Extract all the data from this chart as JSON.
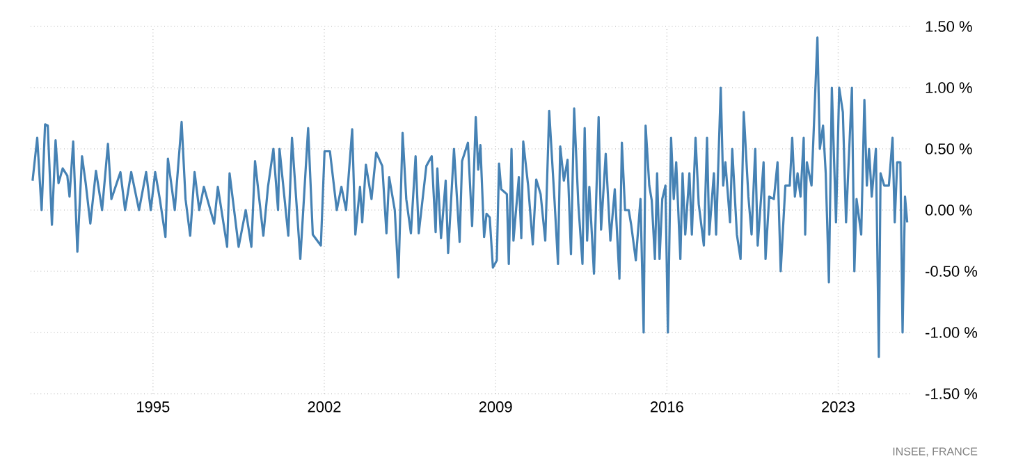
{
  "chart_data": {
    "type": "line",
    "color": "#4682b4",
    "x": [
      1990.08,
      1990.27,
      1990.42,
      1990.45,
      1990.59,
      1990.7,
      1990.87,
      1991.02,
      1991.14,
      1991.31,
      1991.5,
      1991.59,
      1991.74,
      1991.91,
      1992.1,
      1992.25,
      1992.44,
      1992.67,
      1992.92,
      1993.16,
      1993.3,
      1993.67,
      1993.86,
      1994.11,
      1994.43,
      1994.72,
      1994.91,
      1995.09,
      1995.28,
      1995.51,
      1995.61,
      1995.89,
      1996.17,
      1996.33,
      1996.52,
      1996.7,
      1996.89,
      1997.08,
      1997.5,
      1997.65,
      1998.03,
      1998.13,
      1998.5,
      1998.79,
      1999.02,
      1999.17,
      1999.51,
      1999.7,
      1999.92,
      2000.11,
      2000.17,
      2000.53,
      2000.68,
      2001.02,
      2001.34,
      2001.53,
      2001.86,
      2002.01,
      2002.23,
      2002.51,
      2002.7,
      2002.89,
      2003.14,
      2003.27,
      2003.46,
      2003.55,
      2003.7,
      2003.93,
      2004.12,
      2004.37,
      2004.54,
      2004.65,
      2004.88,
      2005.03,
      2005.2,
      2005.35,
      2005.54,
      2005.73,
      2005.86,
      2006.17,
      2006.39,
      2006.55,
      2006.62,
      2006.77,
      2006.96,
      2007.06,
      2007.3,
      2007.53,
      2007.63,
      2007.87,
      2008.04,
      2008.19,
      2008.29,
      2008.38,
      2008.53,
      2008.63,
      2008.76,
      2008.89,
      2009.05,
      2009.14,
      2009.23,
      2009.46,
      2009.54,
      2009.65,
      2009.73,
      2009.95,
      2010.05,
      2010.13,
      2010.33,
      2010.52,
      2010.66,
      2010.84,
      2011.03,
      2011.19,
      2011.41,
      2011.55,
      2011.64,
      2011.79,
      2011.94,
      2012.08,
      2012.21,
      2012.38,
      2012.55,
      2012.64,
      2012.74,
      2012.83,
      2013.02,
      2013.21,
      2013.31,
      2013.5,
      2013.69,
      2013.87,
      2014.06,
      2014.16,
      2014.29,
      2014.44,
      2014.54,
      2014.73,
      2014.92,
      2015.05,
      2015.13,
      2015.28,
      2015.38,
      2015.51,
      2015.6,
      2015.7,
      2015.81,
      2015.94,
      2016.04,
      2016.17,
      2016.28,
      2016.38,
      2016.55,
      2016.64,
      2016.75,
      2016.92,
      2017.02,
      2017.17,
      2017.3,
      2017.51,
      2017.64,
      2017.73,
      2017.92,
      2018.01,
      2018.2,
      2018.3,
      2018.39,
      2018.58,
      2018.67,
      2018.86,
      2019.01,
      2019.14,
      2019.33,
      2019.46,
      2019.61,
      2019.71,
      2019.95,
      2020.03,
      2020.18,
      2020.37,
      2020.52,
      2020.65,
      2020.84,
      2021.02,
      2021.12,
      2021.23,
      2021.34,
      2021.46,
      2021.59,
      2021.65,
      2021.72,
      2021.91,
      2022.15,
      2022.25,
      2022.38,
      2022.49,
      2022.62,
      2022.74,
      2022.91,
      2023.04,
      2023.19,
      2023.32,
      2023.56,
      2023.66,
      2023.75,
      2023.94,
      2024.07,
      2024.17,
      2024.26,
      2024.37,
      2024.54,
      2024.66,
      2024.73,
      2024.88,
      2025.07,
      2025.22,
      2025.31,
      2025.41,
      2025.54,
      2025.63,
      2025.73,
      2025.82
    ],
    "values": [
      0.24,
      0.59,
      0.09,
      0,
      0.7,
      0.69,
      -0.12,
      0.57,
      0.22,
      0.34,
      0.28,
      0.11,
      0.56,
      -0.34,
      0.44,
      0.22,
      -0.11,
      0.32,
      0,
      0.54,
      0.09,
      0.31,
      0,
      0.31,
      0,
      0.31,
      0,
      0.31,
      0.09,
      -0.22,
      0.42,
      0,
      0.72,
      0.09,
      -0.21,
      0.31,
      0,
      0.19,
      -0.11,
      0.19,
      -0.3,
      0.3,
      -0.3,
      0,
      -0.3,
      0.4,
      -0.21,
      0.19,
      0.5,
      0,
      0.5,
      -0.21,
      0.59,
      -0.4,
      0.67,
      -0.2,
      -0.29,
      0.48,
      0.48,
      0,
      0.19,
      0,
      0.66,
      -0.2,
      0.19,
      -0.1,
      0.37,
      0.09,
      0.47,
      0.36,
      -0.19,
      0.27,
      0,
      -0.55,
      0.63,
      0.09,
      -0.19,
      0.44,
      -0.19,
      0.36,
      0.44,
      -0.18,
      0.34,
      -0.23,
      0.24,
      -0.35,
      0.5,
      -0.26,
      0.4,
      0.55,
      -0.13,
      0.76,
      0.33,
      0.53,
      -0.22,
      -0.03,
      -0.06,
      -0.47,
      -0.41,
      0.38,
      0.17,
      0.13,
      -0.44,
      0.5,
      -0.25,
      0.27,
      -0.23,
      0.56,
      0.2,
      -0.28,
      0.25,
      0.13,
      -0.25,
      0.81,
      0.07,
      -0.44,
      0.52,
      0.24,
      0.41,
      -0.36,
      0.83,
      0.05,
      -0.44,
      0.67,
      -0.25,
      0.19,
      -0.52,
      0.76,
      -0.16,
      0.46,
      -0.25,
      0.17,
      -0.56,
      0.55,
      0,
      0,
      -0.12,
      -0.41,
      0.09,
      -1.0,
      0.69,
      0.2,
      0.08,
      -0.4,
      0.3,
      -0.4,
      0.09,
      0.2,
      -1.0,
      0.59,
      0.09,
      0.39,
      -0.4,
      0.3,
      -0.2,
      0.3,
      -0.2,
      0.59,
      0.05,
      -0.29,
      0.59,
      -0.2,
      0.3,
      -0.2,
      1.0,
      0.2,
      0.39,
      -0.1,
      0.5,
      -0.2,
      -0.4,
      0.8,
      0.11,
      -0.2,
      0.5,
      -0.29,
      0.39,
      -0.4,
      0.11,
      0.09,
      0.39,
      -0.5,
      0.2,
      0.2,
      0.59,
      0.11,
      0.3,
      0.11,
      0.59,
      -0.2,
      0.39,
      0.2,
      1.41,
      0.5,
      0.69,
      0.3,
      -0.59,
      1.0,
      -0.1,
      1.0,
      0.8,
      -0.1,
      1.0,
      -0.5,
      0.09,
      -0.2,
      0.9,
      0.2,
      0.5,
      0.11,
      0.5,
      -1.2,
      0.3,
      0.2,
      0.2,
      0.59,
      -0.1,
      0.39,
      0.39,
      -1.0,
      0.11,
      -0.1
    ],
    "xlim": [
      1990,
      2026
    ],
    "ylim": [
      -1.5,
      1.5
    ],
    "xticks": [
      1995,
      2002,
      2009,
      2016,
      2023
    ],
    "yticks": [
      {
        "value": -1.5,
        "label": "-1.50 %"
      },
      {
        "value": -1.0,
        "label": "-1.00 %"
      },
      {
        "value": -0.5,
        "label": "-0.50 %"
      },
      {
        "value": 0.0,
        "label": "0.00 %"
      },
      {
        "value": 0.5,
        "label": "0.50 %"
      },
      {
        "value": 1.0,
        "label": "1.00 %"
      },
      {
        "value": 1.5,
        "label": "1.50 %"
      }
    ],
    "grid": true,
    "annotations": [
      "INSEE, FRANCE"
    ]
  }
}
